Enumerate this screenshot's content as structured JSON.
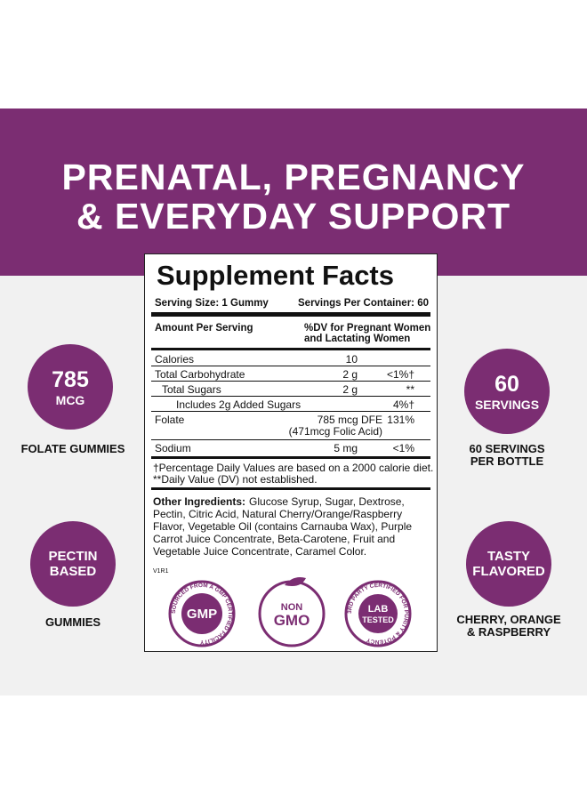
{
  "header": {
    "line1": "PRENATAL, PREGNANCY",
    "line2": "& EVERYDAY SUPPORT"
  },
  "features": [
    {
      "badge": [
        "785",
        "MCG"
      ],
      "caption": [
        "FOLATE GUMMIES"
      ]
    },
    {
      "badge": [
        "PECTIN",
        "BASED"
      ],
      "caption": [
        "GUMMIES"
      ]
    },
    {
      "badge": [
        "60",
        "SERVINGS"
      ],
      "caption": [
        "60 SERVINGS",
        "PER BOTTLE"
      ]
    },
    {
      "badge": [
        "TASTY",
        "FLAVORED"
      ],
      "caption": [
        "CHERRY, ORANGE",
        "& RASPBERRY"
      ]
    }
  ],
  "facts": {
    "title": "Supplement Facts",
    "serving_size": "Serving Size: 1 Gummy",
    "servings_per_container": "Servings Per Container: 60",
    "amount_header": "Amount Per Serving",
    "dv_header": [
      "%DV for Pregnant Women",
      "and Lactating Women"
    ],
    "rows": [
      {
        "name": "Calories",
        "amount": [
          "10"
        ],
        "dv": ""
      },
      {
        "name": "Total Carbohydrate",
        "amount": [
          "2 g"
        ],
        "dv": "<1%†"
      },
      {
        "name": "Total Sugars",
        "amount": [
          "2 g"
        ],
        "dv": "**"
      },
      {
        "name": "Includes 2g Added Sugars",
        "amount": [
          ""
        ],
        "dv": "4%†"
      },
      {
        "name": "Folate",
        "amount": [
          "785 mcg DFE",
          "(471mcg Folic Acid)"
        ],
        "dv": "131%"
      },
      {
        "name": "Sodium",
        "amount": [
          "5 mg"
        ],
        "dv": "<1%"
      }
    ],
    "footnotes": [
      "†Percentage Daily Values are based on a 2000 calorie diet.",
      "**Daily Value (DV) not established."
    ],
    "other_label": "Other Ingredients:",
    "other_text": "Glucose Syrup, Sugar, Dextrose, Pectin, Citric Acid, Natural Cherry/Orange/Raspberry Flavor, Vegetable Oil (contains Carnauba Wax), Purple Carrot Juice Concentrate, Beta-Carotene, Fruit and Vegetable Juice Concentrate, Caramel Color.",
    "code": "V1R1"
  },
  "seals": [
    {
      "ring": "SOURCED FROM A GMP CERTIFIED FACILITY",
      "center": [
        "GMP"
      ]
    },
    {
      "ring": "",
      "center": [
        "NON",
        "GMO"
      ]
    },
    {
      "ring": "3RD PARTY CERTIFIED FOR PURITY & POTENCY",
      "center": [
        "LAB",
        "TESTED"
      ]
    }
  ]
}
